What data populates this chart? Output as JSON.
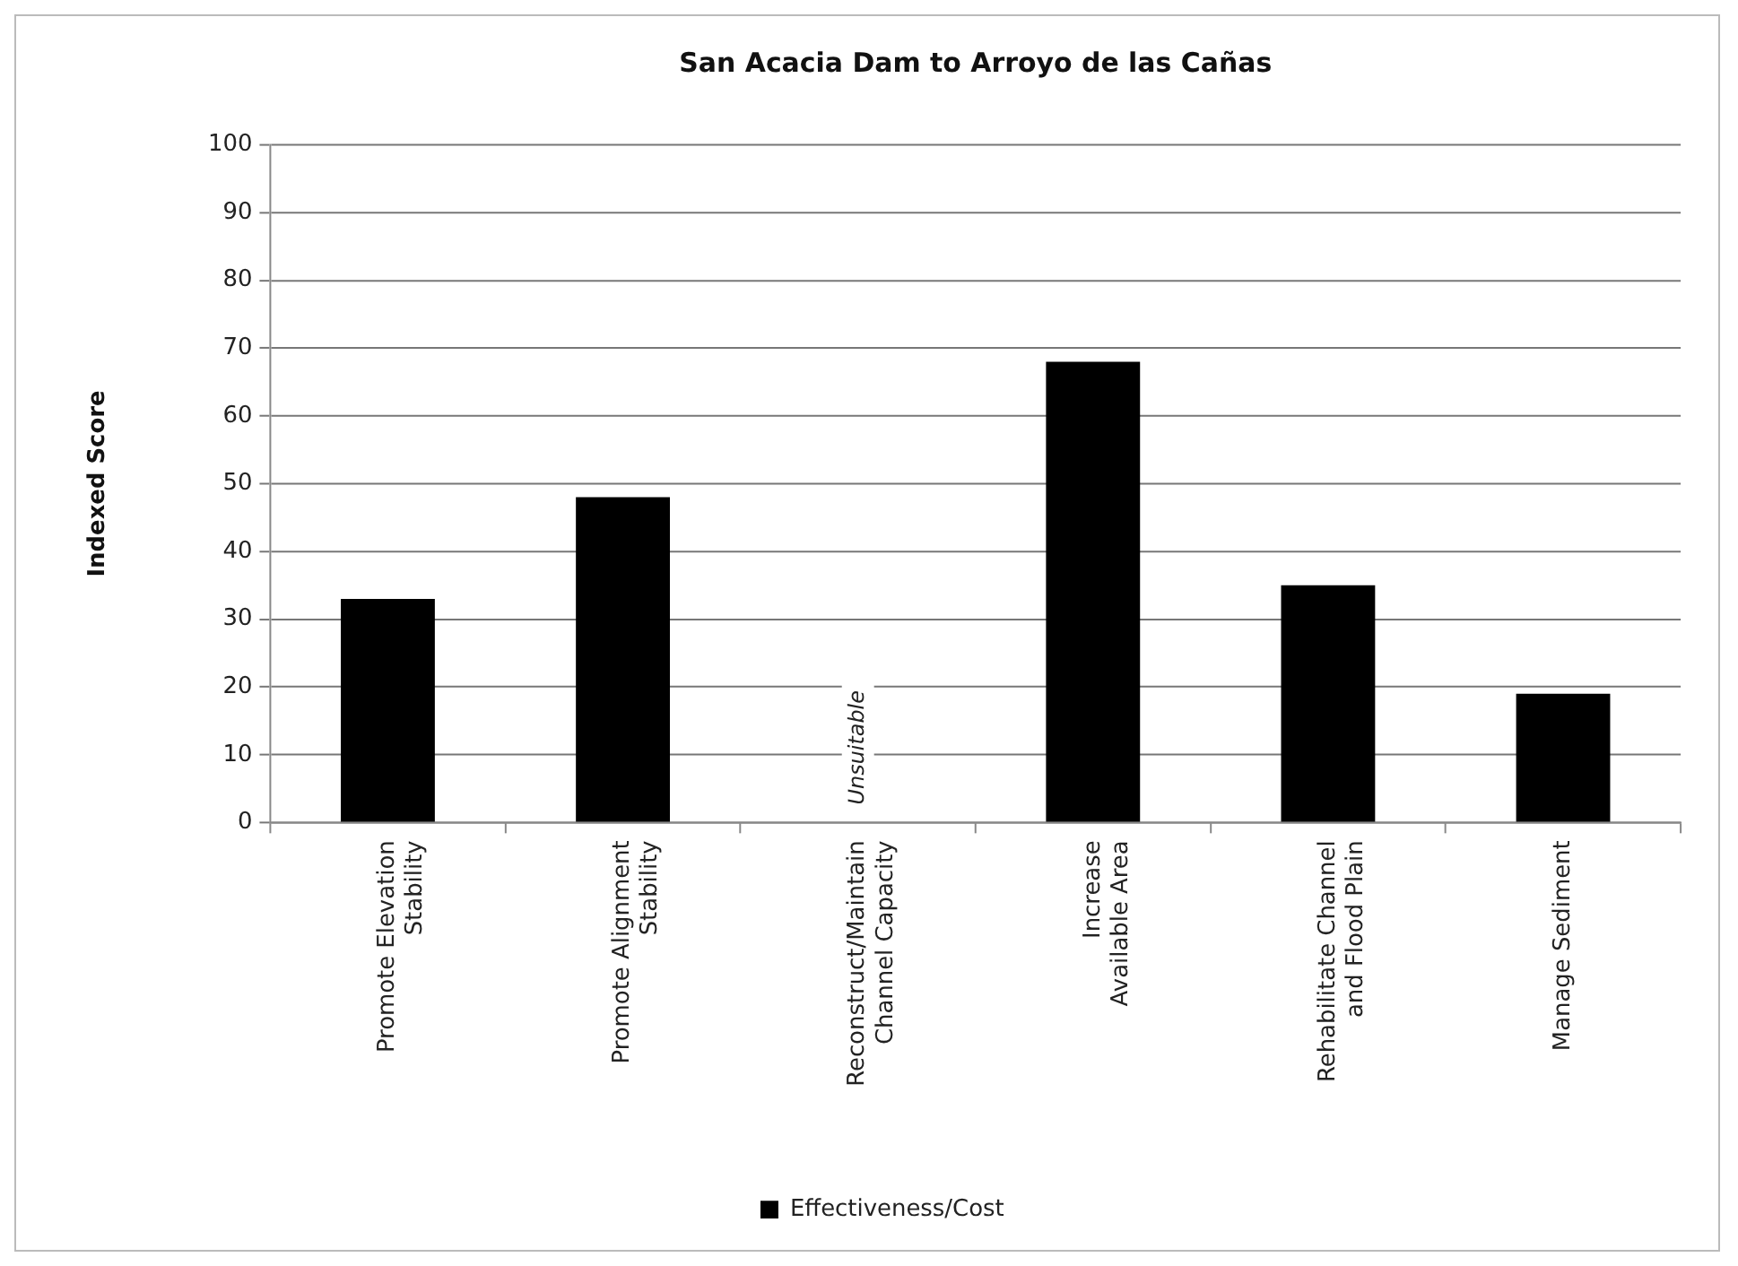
{
  "chart_data": {
    "type": "bar",
    "title": "San Acacia Dam to Arroyo de las Cañas",
    "ylabel": "Indexed Score",
    "categories": [
      "Promote Elevation\nStability",
      "Promote Alignment\nStability",
      "Reconstruct/Maintain\nChannel Capacity",
      "Increase\nAvailable Area",
      "Rehabilitate Channel\nand Flood Plain",
      "Manage Sediment"
    ],
    "series": [
      {
        "name": "Effectiveness/Cost",
        "color": "#000000",
        "values": [
          33,
          48,
          null,
          68,
          35,
          19
        ]
      }
    ],
    "ylim": [
      0,
      100
    ],
    "yticks": [
      0,
      10,
      20,
      30,
      40,
      50,
      60,
      70,
      80,
      90,
      100
    ],
    "grid": "y",
    "legend": "bottom",
    "annotations": [
      "Unsuitable"
    ]
  }
}
